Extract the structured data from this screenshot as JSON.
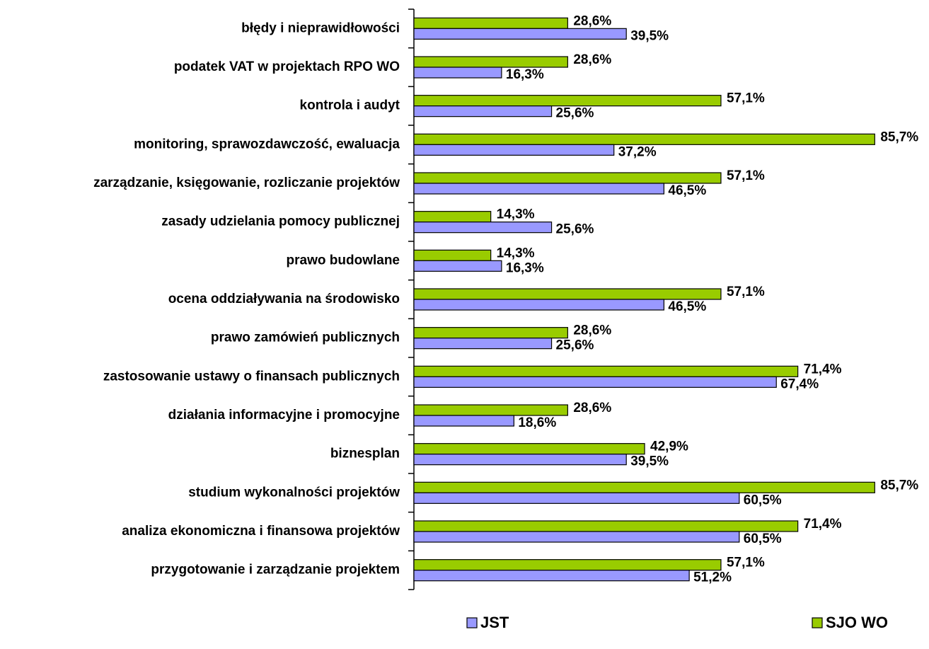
{
  "chart_data": {
    "type": "bar",
    "orientation": "horizontal",
    "categories": [
      "błędy i nieprawidłowości",
      "podatek VAT w projektach RPO WO",
      "kontrola i audyt",
      "monitoring, sprawozdawczość, ewaluacja",
      "zarządzanie, księgowanie, rozliczanie projektów",
      "zasady udzielania pomocy publicznej",
      "prawo budowlane",
      "ocena oddziaływania na środowisko",
      "prawo zamówień publicznych",
      "zastosowanie ustawy o finansach publicznych",
      "działania informacyjne i promocyjne",
      "biznesplan",
      "studium wykonalności projektów",
      "analiza ekonomiczna i finansowa projektów",
      "przygotowanie i zarządzanie projektem"
    ],
    "series": [
      {
        "name": "JST",
        "color": "#9999ff",
        "values": [
          39.5,
          16.3,
          25.6,
          37.2,
          46.5,
          25.6,
          16.3,
          46.5,
          25.6,
          67.4,
          18.6,
          39.5,
          60.5,
          60.5,
          51.2
        ],
        "value_labels": [
          "39,5%",
          "16,3%",
          "25,6%",
          "37,2%",
          "46,5%",
          "25,6%",
          "16,3%",
          "46,5%",
          "25,6%",
          "67,4%",
          "18,6%",
          "39,5%",
          "60,5%",
          "60,5%",
          "51,2%"
        ]
      },
      {
        "name": "SJO WO",
        "color": "#99cc00",
        "values": [
          28.6,
          28.6,
          57.1,
          85.7,
          57.1,
          14.3,
          14.3,
          57.1,
          28.6,
          71.4,
          28.6,
          42.9,
          85.7,
          71.4,
          57.1
        ],
        "value_labels": [
          "28,6%",
          "28,6%",
          "57,1%",
          "85,7%",
          "57,1%",
          "14,3%",
          "14,3%",
          "57,1%",
          "28,6%",
          "71,4%",
          "28,6%",
          "42,9%",
          "85,7%",
          "71,4%",
          "57,1%"
        ]
      }
    ],
    "xlim": [
      0,
      100
    ],
    "legend": "bottom"
  }
}
